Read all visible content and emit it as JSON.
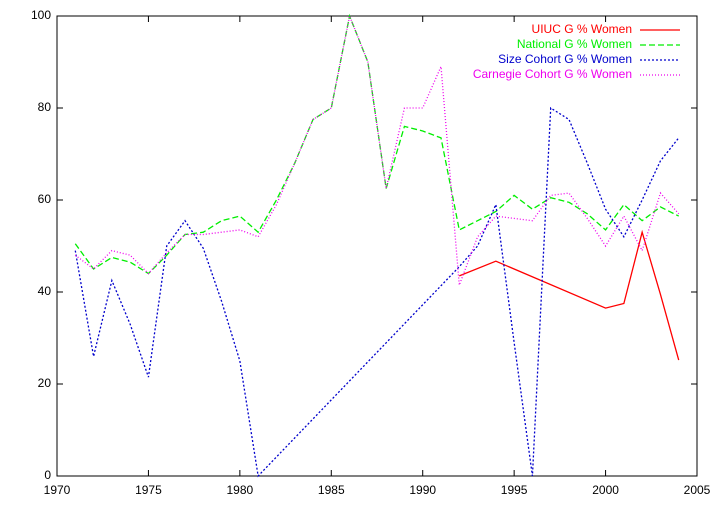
{
  "chart_data": {
    "type": "line",
    "xlim": [
      1970,
      2005
    ],
    "xticks": [
      1970,
      1975,
      1980,
      1985,
      1990,
      1995,
      2000,
      2005
    ],
    "ylim": [
      0,
      100
    ],
    "yticks": [
      0,
      20,
      40,
      60,
      80,
      100
    ],
    "grid": false,
    "legend": "top-right",
    "series": [
      {
        "name": "UIUC G % Women",
        "color": "#ff0000",
        "dash": "none",
        "x": [
          1992,
          1994,
          2000,
          2001,
          2002,
          2003,
          2004
        ],
        "values": [
          43.5,
          46.7,
          36.5,
          37.5,
          53,
          39.5,
          25.2
        ]
      },
      {
        "name": "National G % Women",
        "color": "#00ee00",
        "dash": "6,3",
        "x": [
          1971,
          1972,
          1973,
          1974,
          1975,
          1976,
          1977,
          1978,
          1979,
          1980,
          1981,
          1982,
          1983,
          1984,
          1985,
          1986,
          1987,
          1988,
          1989,
          1990,
          1991,
          1992,
          1993,
          1994,
          1995,
          1996,
          1997,
          1998,
          1999,
          2000,
          2001,
          2002,
          2003,
          2004
        ],
        "values": [
          50.5,
          45,
          47.5,
          46.5,
          44,
          48,
          52.5,
          53,
          55.5,
          56.5,
          53,
          60,
          68,
          77.5,
          80,
          100,
          90,
          62.5,
          76,
          75,
          73.5,
          53.5,
          55.5,
          57.5,
          61,
          58,
          60.5,
          59.5,
          57,
          53.5,
          59,
          55.5,
          58.5,
          56.5
        ]
      },
      {
        "name": "Size Cohort G % Women",
        "color": "#0000cc",
        "dash": "2,2",
        "x": [
          1971,
          1972,
          1973,
          1974,
          1975,
          1976,
          1977,
          1978,
          1979,
          1980,
          1981,
          1992,
          1993,
          1994,
          1995,
          1996,
          1997,
          1998,
          1999,
          2000,
          2001,
          2002,
          2003,
          2004
        ],
        "values": [
          49,
          26,
          42.5,
          33,
          21.5,
          50,
          55.5,
          49.5,
          38,
          25,
          0,
          45.5,
          50,
          59,
          29,
          0,
          80,
          77.5,
          68,
          58,
          52,
          60,
          68.5,
          73.5
        ]
      },
      {
        "name": "Carnegie Cohort G % Women",
        "color": "#ee00ee",
        "dash": "1,2",
        "x": [
          1971,
          1972,
          1973,
          1974,
          1975,
          1976,
          1977,
          1978,
          1979,
          1980,
          1981,
          1982,
          1983,
          1984,
          1985,
          1986,
          1987,
          1988,
          1989,
          1990,
          1991,
          1992,
          1993,
          1994,
          1995,
          1996,
          1997,
          1998,
          1999,
          2000,
          2001,
          2002,
          2003,
          2004
        ],
        "values": [
          48,
          45,
          49,
          48,
          44,
          48.5,
          52.5,
          52.5,
          53,
          53.5,
          52,
          59,
          68,
          77.5,
          80,
          100,
          90,
          62.5,
          80,
          80,
          89,
          41.5,
          52,
          56.5,
          56,
          55.5,
          61,
          61.5,
          56,
          50,
          56.5,
          49,
          61.5,
          57
        ]
      }
    ]
  }
}
